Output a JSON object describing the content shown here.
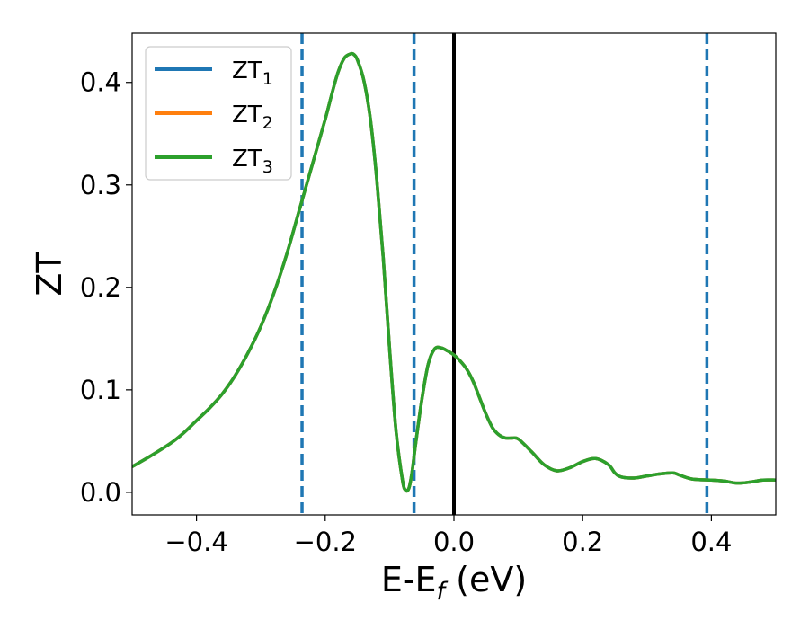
{
  "chart_data": {
    "type": "line",
    "title": "",
    "xlabel": "E-E",
    "xlabel_subscript": "f",
    "xlabel_unit": " (eV)",
    "ylabel": "ZT",
    "xlim": [
      -0.5,
      0.5
    ],
    "ylim": [
      -0.022,
      0.448
    ],
    "xticks": [
      -0.4,
      -0.2,
      0.0,
      0.2,
      0.4
    ],
    "xtick_labels": [
      "−0.4",
      "−0.2",
      "0.0",
      "0.2",
      "0.4"
    ],
    "yticks": [
      0.0,
      0.1,
      0.2,
      0.3,
      0.4
    ],
    "ytick_labels": [
      "0.0",
      "0.1",
      "0.2",
      "0.3",
      "0.4"
    ],
    "grid": false,
    "legend_position": "top-left",
    "series": [
      {
        "name": "ZT",
        "sub": "1",
        "color": "#1f77b4"
      },
      {
        "name": "ZT",
        "sub": "2",
        "color": "#ff7f0e"
      },
      {
        "name": "ZT",
        "sub": "3",
        "color": "#2ca02c"
      }
    ],
    "x": [
      -0.5,
      -0.47,
      -0.44,
      -0.42,
      -0.4,
      -0.38,
      -0.36,
      -0.34,
      -0.32,
      -0.3,
      -0.28,
      -0.26,
      -0.24,
      -0.22,
      -0.2,
      -0.19,
      -0.18,
      -0.17,
      -0.16,
      -0.155,
      -0.15,
      -0.14,
      -0.13,
      -0.12,
      -0.11,
      -0.1,
      -0.09,
      -0.08,
      -0.075,
      -0.07,
      -0.065,
      -0.06,
      -0.05,
      -0.04,
      -0.03,
      -0.02,
      -0.01,
      0.0,
      0.01,
      0.02,
      0.03,
      0.04,
      0.05,
      0.06,
      0.07,
      0.08,
      0.09,
      0.1,
      0.12,
      0.14,
      0.16,
      0.18,
      0.2,
      0.22,
      0.24,
      0.25,
      0.26,
      0.28,
      0.3,
      0.32,
      0.34,
      0.35,
      0.37,
      0.4,
      0.42,
      0.44,
      0.46,
      0.48,
      0.5
    ],
    "values": [
      0.025,
      0.036,
      0.048,
      0.058,
      0.07,
      0.082,
      0.096,
      0.114,
      0.136,
      0.162,
      0.194,
      0.232,
      0.276,
      0.32,
      0.364,
      0.388,
      0.41,
      0.424,
      0.428,
      0.427,
      0.422,
      0.402,
      0.365,
      0.306,
      0.23,
      0.14,
      0.06,
      0.012,
      0.002,
      0.004,
      0.02,
      0.045,
      0.09,
      0.125,
      0.14,
      0.141,
      0.138,
      0.134,
      0.128,
      0.12,
      0.108,
      0.092,
      0.076,
      0.063,
      0.056,
      0.053,
      0.053,
      0.052,
      0.04,
      0.027,
      0.021,
      0.024,
      0.03,
      0.033,
      0.027,
      0.019,
      0.015,
      0.014,
      0.016,
      0.018,
      0.019,
      0.017,
      0.013,
      0.012,
      0.011,
      0.009,
      0.01,
      0.012,
      0.012
    ],
    "vlines_dashed": [
      -0.236,
      -0.062,
      0.393
    ],
    "vline_dashed_color": "#1f77b4",
    "vline_solid": 0.0,
    "vline_solid_color": "#000000"
  }
}
